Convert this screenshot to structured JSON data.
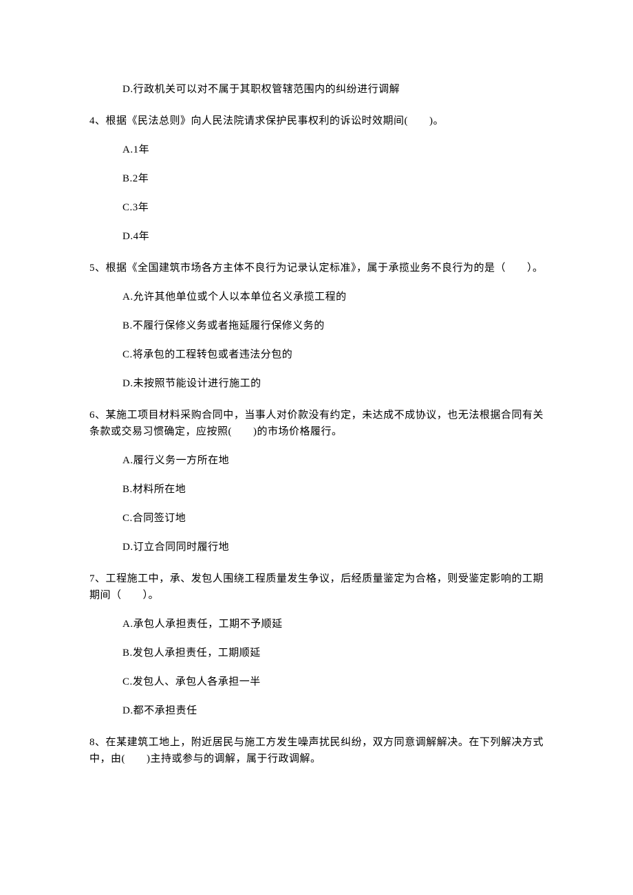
{
  "orphan_option": "D.行政机关可以对不属于其职权管辖范围内的纠纷进行调解",
  "questions": [
    {
      "stem": "4、根据《民法总则》向人民法院请求保护民事权利的诉讼时效期间(　　)。",
      "options": [
        "A.1年",
        "B.2年",
        "C.3年",
        "D.4年"
      ]
    },
    {
      "stem": "5、根据《全国建筑市场各方主体不良行为记录认定标准》，属于承揽业务不良行为的是（　　）。",
      "options": [
        "A.允许其他单位或个人以本单位名义承揽工程的",
        "B.不履行保修义务或者拖延履行保修义务的",
        "C.将承包的工程转包或者违法分包的",
        "D.未按照节能设计进行施工的"
      ]
    },
    {
      "stem": "6、某施工项目材料采购合同中，当事人对价款没有约定，未达成不成协议，也无法根据合同有关条款或交易习惯确定，应按照(　　)的市场价格履行。",
      "options": [
        "A.履行义务一方所在地",
        "B.材料所在地",
        "C.合同签订地",
        "D.订立合同同时履行地"
      ]
    },
    {
      "stem": "7、工程施工中，承、发包人围绕工程质量发生争议，后经质量鉴定为合格，则受鉴定影响的工期期间（　　）。",
      "options": [
        "A.承包人承担责任，工期不予顺延",
        "B.发包人承担责任，工期顺延",
        "C.发包人、承包人各承担一半",
        "D.都不承担责任"
      ]
    },
    {
      "stem": "8、在某建筑工地上，附近居民与施工方发生噪声扰民纠纷，双方同意调解解决。在下列解决方式中，由(　　)主持或参与的调解，属于行政调解。",
      "options": []
    }
  ]
}
